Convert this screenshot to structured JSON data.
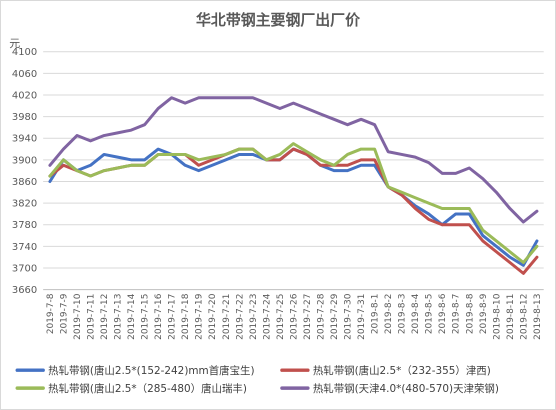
{
  "chart_data": {
    "type": "line",
    "title": "华北带钢主要钢厂出厂价",
    "yunit": "元",
    "ylim": [
      3660,
      4100
    ],
    "yticks": [
      3660,
      3700,
      3740,
      3780,
      3820,
      3860,
      3900,
      3940,
      3980,
      4020,
      4060,
      4100
    ],
    "grid": true,
    "legend_position": "bottom",
    "categories": [
      "2019-7-8",
      "2019-7-9",
      "2019-7-10",
      "2019-7-11",
      "2019-7-12",
      "2019-7-13",
      "2019-7-14",
      "2019-7-15",
      "2019-7-16",
      "2019-7-17",
      "2019-7-18",
      "2019-7-19",
      "2019-7-20",
      "2019-7-21",
      "2019-7-22",
      "2019-7-23",
      "2019-7-24",
      "2019-7-25",
      "2019-7-26",
      "2019-7-27",
      "2019-7-28",
      "2019-7-29",
      "2019-7-30",
      "2019-7-31",
      "2019-8-1",
      "2019-8-2",
      "2019-8-3",
      "2019-8-4",
      "2019-8-5",
      "2019-8-6",
      "2019-8-7",
      "2019-8-8",
      "2019-8-9",
      "2019-8-10",
      "2019-8-11",
      "2019-8-12",
      "2019-8-13"
    ],
    "series": [
      {
        "name": "热轧带钢(唐山2.5*(152-242)mm首唐宝生)",
        "color": "#4472C4",
        "values": [
          3860,
          3900,
          3880,
          3890,
          3910,
          3905,
          3900,
          3900,
          3920,
          3910,
          3890,
          3880,
          3890,
          3900,
          3910,
          3910,
          3900,
          3900,
          3920,
          3910,
          3890,
          3880,
          3880,
          3890,
          3890,
          3850,
          3835,
          3815,
          3800,
          3780,
          3800,
          3800,
          3760,
          3740,
          3720,
          3705,
          3750
        ]
      },
      {
        "name": "热轧带钢(唐山2.5*（232-355）津西)",
        "color": "#C0504D",
        "values": [
          3870,
          3890,
          3880,
          3870,
          3880,
          3885,
          3890,
          3890,
          3910,
          3910,
          3910,
          3890,
          3900,
          3910,
          3920,
          3920,
          3900,
          3900,
          3920,
          3910,
          3890,
          3890,
          3890,
          3900,
          3900,
          3850,
          3835,
          3810,
          3790,
          3780,
          3780,
          3780,
          3750,
          3730,
          3710,
          3690,
          3720
        ]
      },
      {
        "name": "热轧带钢(唐山2.5*（285-480）唐山瑞丰)",
        "color": "#9BBB59",
        "values": [
          3870,
          3900,
          3880,
          3870,
          3880,
          3885,
          3890,
          3890,
          3910,
          3910,
          3910,
          3900,
          3905,
          3910,
          3920,
          3920,
          3900,
          3910,
          3930,
          3915,
          3900,
          3890,
          3910,
          3920,
          3920,
          3850,
          3840,
          3830,
          3820,
          3810,
          3810,
          3810,
          3770,
          3750,
          3730,
          3710,
          3740
        ]
      },
      {
        "name": "热轧带钢(天津4.0*(480-570)天津荣钢)",
        "color": "#8064A2",
        "values": [
          3890,
          3920,
          3945,
          3935,
          3945,
          3950,
          3955,
          3965,
          3995,
          4015,
          4005,
          4015,
          4015,
          4015,
          4015,
          4015,
          4005,
          3995,
          4005,
          3995,
          3985,
          3975,
          3965,
          3975,
          3965,
          3915,
          3910,
          3905,
          3895,
          3875,
          3875,
          3885,
          3865,
          3840,
          3810,
          3785,
          3805
        ]
      }
    ]
  }
}
